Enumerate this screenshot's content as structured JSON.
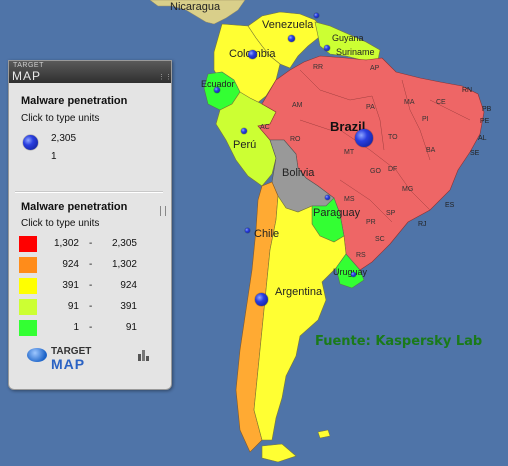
{
  "panel": {
    "brand_top": "TARGET",
    "brand_bottom": "MAP",
    "size_legend": {
      "title": "Malware penetration",
      "subtitle": "Click to type units",
      "max": "2,305",
      "min": "1"
    },
    "color_legend": {
      "title": "Malware penetration",
      "subtitle": "Click to type units",
      "ranges": [
        {
          "low": "1,302",
          "high": "2,305",
          "color": "#ff0000"
        },
        {
          "low": "924",
          "high": "1,302",
          "color": "#ff8c1a"
        },
        {
          "low": "391",
          "high": "924",
          "color": "#ffff00"
        },
        {
          "low": "91",
          "high": "391",
          "color": "#ccff33"
        },
        {
          "low": "1",
          "high": "91",
          "color": "#33ff33"
        }
      ],
      "separator": "-"
    },
    "logo_top": "TARGET",
    "logo_bottom": "MAP"
  },
  "map": {
    "countries": {
      "nicaragua": "Nicaragua",
      "venezuela": "Venezuela",
      "guyana": "Guyana",
      "suriname": "Suriname",
      "colombia": "Colombia",
      "ecuador": "Ecuador",
      "peru": "Perú",
      "brazil": "Brazil",
      "bolivia": "Bolivia",
      "paraguay": "Paraguay",
      "chile": "Chile",
      "argentina": "Argentina",
      "uruguay": "Uruguay"
    },
    "states": [
      "RR",
      "AP",
      "AM",
      "PA",
      "MA",
      "CE",
      "RN",
      "PB",
      "PE",
      "AL",
      "SE",
      "PI",
      "TO",
      "BA",
      "AC",
      "RO",
      "MT",
      "GO",
      "DF",
      "MG",
      "ES",
      "MS",
      "SP",
      "RJ",
      "PR",
      "SC",
      "RS"
    ],
    "source": "Fuente: Kaspersky Lab"
  },
  "colors": {
    "ocean": "#4f74a8",
    "panel_bg": "#e4e4e4"
  }
}
